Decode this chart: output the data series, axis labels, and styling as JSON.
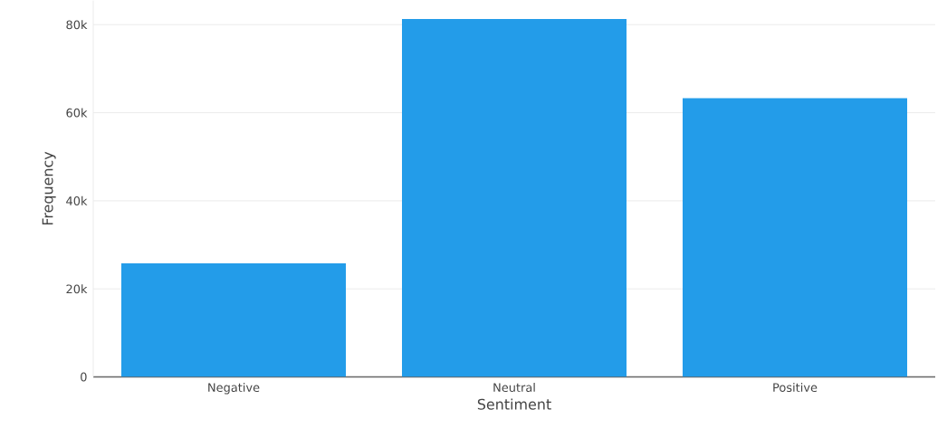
{
  "chart_data": {
    "type": "bar",
    "xlabel": "Sentiment",
    "ylabel": "Frequency",
    "categories": [
      "Negative",
      "Neutral",
      "Positive"
    ],
    "values": [
      25800,
      81300,
      63300
    ],
    "color": "#239ce9",
    "ylim": [
      0,
      85500
    ],
    "yticks": [
      0,
      {
        "value": 20000,
        "label": "20k"
      },
      {
        "value": 40000,
        "label": "40k"
      },
      {
        "value": 60000,
        "label": "60k"
      },
      {
        "value": 80000,
        "label": "80k"
      }
    ],
    "grid": "y"
  }
}
